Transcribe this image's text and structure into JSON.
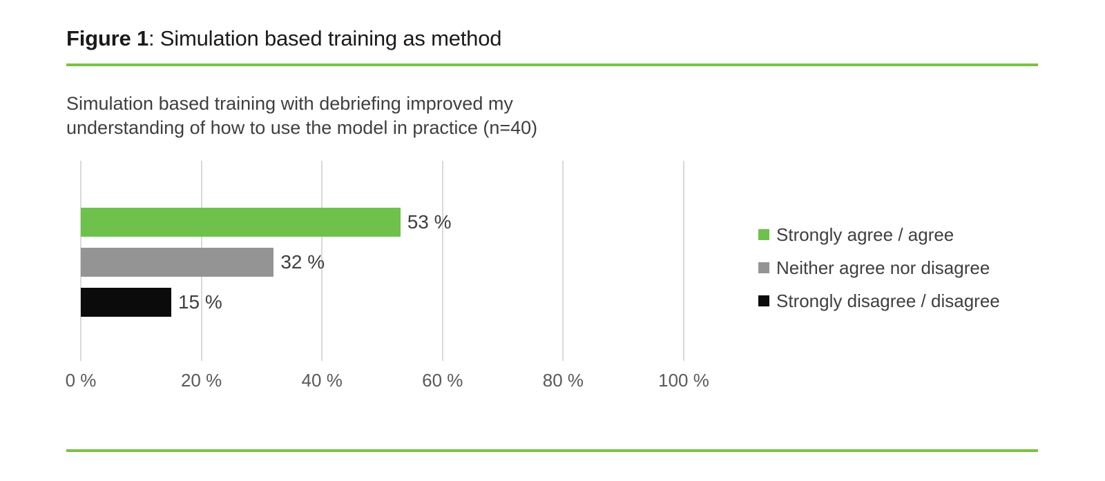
{
  "header": {
    "figure_label": "Figure 1",
    "figure_title_rest": ": Simulation based training as method"
  },
  "chart_data": {
    "type": "bar",
    "orientation": "horizontal",
    "title": "Simulation based training with debriefing improved my understanding of how to use the model in practice (n=40)",
    "title_lines": [
      "Simulation based training with debriefing improved my",
      "understanding of how to use the model in practice (n=40)"
    ],
    "sample_size_label": "n=40",
    "categories": [
      "Strongly agree / agree",
      "Neither agree nor disagree",
      "Strongly disagree / disagree"
    ],
    "values": [
      53,
      32,
      15
    ],
    "value_labels": [
      "53 %",
      "32 %",
      "15 %"
    ],
    "bar_colors": [
      "#6ec24b",
      "#949494",
      "#0b0b0b"
    ],
    "xlim": [
      0,
      100
    ],
    "x_ticks": [
      {
        "value": 0,
        "label": "0 %"
      },
      {
        "value": 20,
        "label": "20 %"
      },
      {
        "value": 40,
        "label": "40 %"
      },
      {
        "value": 60,
        "label": "60 %"
      },
      {
        "value": 80,
        "label": "80 %"
      },
      {
        "value": 100,
        "label": "100 %"
      }
    ],
    "grid": true,
    "legend_position": "right",
    "legend": [
      {
        "label": "Strongly agree / agree",
        "color": "#6ec24b"
      },
      {
        "label": "Neither agree nor disagree",
        "color": "#949494"
      },
      {
        "label": "Strongly disagree / disagree",
        "color": "#0b0b0b"
      }
    ]
  },
  "style": {
    "accent_line_green": "#7ac143",
    "grid_color": "#d9d9d9",
    "title_color": "#1a1a1a",
    "text_color": "#3f3f3f",
    "axis_label_color": "#595959"
  }
}
